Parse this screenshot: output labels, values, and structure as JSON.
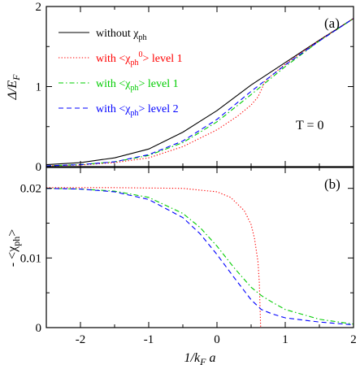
{
  "chart_data": [
    {
      "panel": "(a)",
      "type": "line",
      "ylabel": "Δ/E_F",
      "xlabel": "",
      "xlim": [
        -2.5,
        2
      ],
      "ylim": [
        0,
        2
      ],
      "x_ticks": [
        -2,
        -1,
        0,
        1,
        2
      ],
      "y_ticks": [
        0,
        1,
        2
      ],
      "annotation": "T = 0",
      "legend_position": "top-left",
      "series": [
        {
          "name": "without χ_ph",
          "color": "#000000",
          "dash": "solid",
          "points": [
            [
              -2.5,
              0.025
            ],
            [
              -2.0,
              0.05
            ],
            [
              -1.5,
              0.11
            ],
            [
              -1.0,
              0.22
            ],
            [
              -0.5,
              0.43
            ],
            [
              0.0,
              0.7
            ],
            [
              0.5,
              1.02
            ],
            [
              1.0,
              1.3
            ],
            [
              1.5,
              1.58
            ],
            [
              2.0,
              1.85
            ]
          ]
        },
        {
          "name": "with <χ_ph^0> level 1",
          "color": "#ff0000",
          "dash": "dotted",
          "points": [
            [
              -2.5,
              0.01
            ],
            [
              -2.0,
              0.02
            ],
            [
              -1.5,
              0.05
            ],
            [
              -1.0,
              0.11
            ],
            [
              -0.5,
              0.25
            ],
            [
              0.0,
              0.46
            ],
            [
              0.3,
              0.63
            ],
            [
              0.5,
              0.77
            ],
            [
              0.6,
              0.87
            ],
            [
              0.65,
              0.96
            ],
            [
              0.7,
              1.06
            ],
            [
              0.8,
              1.14
            ],
            [
              1.0,
              1.28
            ],
            [
              1.5,
              1.58
            ],
            [
              2.0,
              1.85
            ]
          ]
        },
        {
          "name": "with <χ_ph> level 1",
          "color": "#00cc00",
          "dash": "dashdot",
          "points": [
            [
              -2.5,
              0.01
            ],
            [
              -2.0,
              0.025
            ],
            [
              -1.5,
              0.06
            ],
            [
              -1.0,
              0.14
            ],
            [
              -0.5,
              0.3
            ],
            [
              0.0,
              0.56
            ],
            [
              0.5,
              0.9
            ],
            [
              1.0,
              1.25
            ],
            [
              1.5,
              1.57
            ],
            [
              2.0,
              1.85
            ]
          ]
        },
        {
          "name": "with <χ_ph> level 2",
          "color": "#0000ff",
          "dash": "dashed",
          "points": [
            [
              -2.5,
              0.01
            ],
            [
              -2.0,
              0.025
            ],
            [
              -1.5,
              0.06
            ],
            [
              -1.0,
              0.15
            ],
            [
              -0.5,
              0.32
            ],
            [
              0.0,
              0.59
            ],
            [
              0.5,
              0.94
            ],
            [
              1.0,
              1.27
            ],
            [
              1.5,
              1.57
            ],
            [
              2.0,
              1.85
            ]
          ]
        }
      ]
    },
    {
      "panel": "(b)",
      "type": "line",
      "ylabel": "- <χ_ph>",
      "xlabel": "1/k_F a",
      "xlim": [
        -2.5,
        2
      ],
      "ylim": [
        0,
        0.023
      ],
      "x_ticks": [
        -2,
        -1,
        0,
        1,
        2
      ],
      "y_ticks": [
        0,
        0.01,
        0.02
      ],
      "series": [
        {
          "name": "with <χ_ph^0> level 1",
          "color": "#ff0000",
          "dash": "dotted",
          "points": [
            [
              -2.5,
              0.0201
            ],
            [
              -1.5,
              0.0201
            ],
            [
              -0.5,
              0.02
            ],
            [
              0.0,
              0.0195
            ],
            [
              0.2,
              0.0187
            ],
            [
              0.4,
              0.0168
            ],
            [
              0.5,
              0.0148
            ],
            [
              0.55,
              0.0128
            ],
            [
              0.6,
              0.0095
            ],
            [
              0.62,
              0.0065
            ],
            [
              0.64,
              0.0
            ]
          ]
        },
        {
          "name": "with <χ_ph> level 1",
          "color": "#00cc00",
          "dash": "dashdot",
          "points": [
            [
              -2.5,
              0.02
            ],
            [
              -2.0,
              0.0199
            ],
            [
              -1.5,
              0.0196
            ],
            [
              -1.0,
              0.0187
            ],
            [
              -0.5,
              0.0164
            ],
            [
              -0.25,
              0.0144
            ],
            [
              0.0,
              0.0117
            ],
            [
              0.25,
              0.0086
            ],
            [
              0.5,
              0.0058
            ],
            [
              0.65,
              0.0046
            ],
            [
              0.8,
              0.0037
            ],
            [
              1.0,
              0.0026
            ],
            [
              1.5,
              0.0012
            ],
            [
              2.0,
              0.0005
            ]
          ]
        },
        {
          "name": "with <χ_ph> level 2",
          "color": "#0000ff",
          "dash": "dashed",
          "points": [
            [
              -2.5,
              0.02
            ],
            [
              -2.0,
              0.0199
            ],
            [
              -1.5,
              0.0195
            ],
            [
              -1.0,
              0.0184
            ],
            [
              -0.5,
              0.0158
            ],
            [
              -0.25,
              0.0135
            ],
            [
              0.0,
              0.0105
            ],
            [
              0.25,
              0.0072
            ],
            [
              0.5,
              0.004
            ],
            [
              0.65,
              0.0026
            ],
            [
              0.8,
              0.002
            ],
            [
              1.0,
              0.0014
            ],
            [
              1.5,
              0.0008
            ],
            [
              2.0,
              0.0004
            ]
          ]
        }
      ]
    }
  ]
}
